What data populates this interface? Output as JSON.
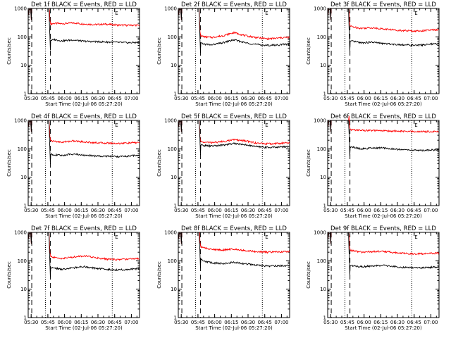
{
  "figure": {
    "colors": {
      "events": "#000000",
      "lld": "#ff0000",
      "axes": "#000000",
      "background": "#ffffff"
    },
    "line_styles": {
      "saa_markers": "dashed",
      "flare_markers": "dotted"
    }
  },
  "chart_data": [
    {
      "type": "line",
      "title": "Det 1f BLACK = Events, RED = LLD",
      "xlabel": "Start Time (02-Jul-06 05:27:20)",
      "ylabel": "Counts/sec",
      "x_ticks": [
        "05:30",
        "05:45",
        "06:00",
        "06:15",
        "06:30",
        "06:45",
        "07:00"
      ],
      "y_ticks": [
        "1",
        "10",
        "100",
        "1000"
      ],
      "yscale": "log",
      "xlim_minutes": [
        0,
        100
      ],
      "ylim": [
        1,
        1000
      ],
      "markers": [
        {
          "type": "dashed",
          "x_min": 3.2
        },
        {
          "type": "dotted",
          "x_min": 15.5
        },
        {
          "type": "dashed",
          "x_min": 20.0
        },
        {
          "type": "dotted",
          "x_min": 75.5
        },
        {
          "type": "label",
          "text": "E",
          "x_min": 78.0
        }
      ],
      "series": [
        {
          "name": "LLD",
          "color": "#ff0000",
          "x_min": [
            19.5,
            24,
            30,
            40,
            50,
            60,
            70,
            80,
            90,
            95
          ],
          "y": [
            280,
            300,
            290,
            310,
            285,
            270,
            280,
            260,
            255,
            258
          ]
        },
        {
          "name": "Events",
          "color": "#000000",
          "x_min": [
            19.5,
            24,
            30,
            40,
            50,
            60,
            70,
            80,
            90,
            95
          ],
          "y": [
            75,
            80,
            72,
            78,
            70,
            68,
            66,
            64,
            62,
            63
          ]
        }
      ]
    },
    {
      "type": "line",
      "title": "Det 2f BLACK = Events, RED = LLD",
      "xlabel": "Start Time (02-Jul-06 05:27:20)",
      "ylabel": "Counts/sec",
      "x_ticks": [
        "05:30",
        "05:45",
        "06:00",
        "06:15",
        "06:30",
        "06:45",
        "07:00"
      ],
      "y_ticks": [
        "1",
        "10",
        "100",
        "1000"
      ],
      "yscale": "log",
      "xlim_minutes": [
        0,
        100
      ],
      "ylim": [
        1,
        1000
      ],
      "markers": [
        {
          "type": "dashed",
          "x_min": 3.2
        },
        {
          "type": "dotted",
          "x_min": 15.5
        },
        {
          "type": "dashed",
          "x_min": 20.0
        },
        {
          "type": "dotted",
          "x_min": 75.5
        },
        {
          "type": "label",
          "text": "E",
          "x_min": 78.0
        }
      ],
      "series": [
        {
          "name": "LLD",
          "color": "#ff0000",
          "x_min": [
            19.5,
            24,
            30,
            40,
            50,
            60,
            70,
            80,
            90,
            95
          ],
          "y": [
            110,
            100,
            95,
            110,
            140,
            110,
            95,
            85,
            90,
            95
          ]
        },
        {
          "name": "Events",
          "color": "#000000",
          "x_min": [
            19.5,
            24,
            30,
            40,
            50,
            60,
            70,
            80,
            90,
            95
          ],
          "y": [
            60,
            55,
            52,
            62,
            78,
            62,
            54,
            50,
            52,
            55
          ]
        }
      ]
    },
    {
      "type": "line",
      "title": "Det 3f BLACK = Events, RED = LLD",
      "xlabel": "Start Time (02-Jul-06 05:27:20)",
      "ylabel": "Counts/sec",
      "x_ticks": [
        "05:30",
        "05:45",
        "06:00",
        "06:15",
        "06:30",
        "06:45",
        "07:00"
      ],
      "y_ticks": [
        "1",
        "10",
        "100",
        "1000"
      ],
      "yscale": "log",
      "xlim_minutes": [
        0,
        100
      ],
      "ylim": [
        1,
        1000
      ],
      "markers": [
        {
          "type": "dashed",
          "x_min": 3.2
        },
        {
          "type": "dotted",
          "x_min": 15.5
        },
        {
          "type": "dashed",
          "x_min": 20.0
        },
        {
          "type": "dotted",
          "x_min": 75.5
        },
        {
          "type": "label",
          "text": "E",
          "x_min": 78.0
        }
      ],
      "series": [
        {
          "name": "LLD",
          "color": "#ff0000",
          "x_min": [
            19.5,
            24,
            30,
            40,
            50,
            60,
            70,
            80,
            90,
            95
          ],
          "y": [
            240,
            220,
            200,
            210,
            190,
            175,
            165,
            160,
            170,
            175
          ]
        },
        {
          "name": "Events",
          "color": "#000000",
          "x_min": [
            19.5,
            24,
            30,
            40,
            50,
            60,
            70,
            80,
            90,
            95
          ],
          "y": [
            70,
            68,
            62,
            65,
            58,
            55,
            52,
            50,
            54,
            56
          ]
        }
      ]
    },
    {
      "type": "line",
      "title": "Det 4f BLACK = Events, RED = LLD",
      "xlabel": "Start Time (02-Jul-06 05:27:20)",
      "ylabel": "Counts/sec",
      "x_ticks": [
        "05:30",
        "05:45",
        "06:00",
        "06:15",
        "06:30",
        "06:45",
        "07:00"
      ],
      "y_ticks": [
        "1",
        "10",
        "100",
        "1000"
      ],
      "yscale": "log",
      "xlim_minutes": [
        0,
        100
      ],
      "ylim": [
        1,
        1000
      ],
      "markers": [
        {
          "type": "dashed",
          "x_min": 3.2
        },
        {
          "type": "dotted",
          "x_min": 15.5
        },
        {
          "type": "dashed",
          "x_min": 20.0
        },
        {
          "type": "dotted",
          "x_min": 75.5
        },
        {
          "type": "label",
          "text": "E",
          "x_min": 78.0
        }
      ],
      "series": [
        {
          "name": "LLD",
          "color": "#ff0000",
          "x_min": [
            19.5,
            24,
            30,
            40,
            50,
            60,
            70,
            80,
            90,
            95
          ],
          "y": [
            190,
            185,
            170,
            190,
            175,
            165,
            160,
            155,
            160,
            165
          ]
        },
        {
          "name": "Events",
          "color": "#000000",
          "x_min": [
            19.5,
            24,
            30,
            40,
            50,
            60,
            70,
            80,
            90,
            95
          ],
          "y": [
            65,
            62,
            58,
            66,
            60,
            56,
            55,
            53,
            55,
            58
          ]
        }
      ]
    },
    {
      "type": "line",
      "title": "Det 5f BLACK = Events, RED = LLD",
      "xlabel": "Start Time (02-Jul-06 05:27:20)",
      "ylabel": "Counts/sec",
      "x_ticks": [
        "05:30",
        "05:45",
        "06:00",
        "06:15",
        "06:30",
        "06:45",
        "07:00"
      ],
      "y_ticks": [
        "1",
        "10",
        "100",
        "1000"
      ],
      "yscale": "log",
      "xlim_minutes": [
        0,
        100
      ],
      "ylim": [
        1,
        1000
      ],
      "markers": [
        {
          "type": "dashed",
          "x_min": 3.2
        },
        {
          "type": "dotted",
          "x_min": 15.5
        },
        {
          "type": "dashed",
          "x_min": 20.0
        },
        {
          "type": "dotted",
          "x_min": 75.5
        },
        {
          "type": "label",
          "text": "E",
          "x_min": 78.0
        }
      ],
      "series": [
        {
          "name": "LLD",
          "color": "#ff0000",
          "x_min": [
            19.5,
            24,
            30,
            40,
            50,
            60,
            70,
            80,
            90,
            95
          ],
          "y": [
            175,
            170,
            165,
            180,
            210,
            190,
            160,
            150,
            155,
            160
          ]
        },
        {
          "name": "Events",
          "color": "#000000",
          "x_min": [
            19.5,
            24,
            30,
            40,
            50,
            60,
            70,
            80,
            90,
            95
          ],
          "y": [
            135,
            130,
            125,
            135,
            155,
            140,
            120,
            112,
            115,
            120
          ]
        }
      ]
    },
    {
      "type": "line",
      "title": "Det 6f BLACK = Events, RED = LLD",
      "xlabel": "Start Time (02-Jul-06 05:27:20)",
      "ylabel": "Counts/sec",
      "x_ticks": [
        "05:30",
        "05:45",
        "06:00",
        "06:15",
        "06:30",
        "06:45",
        "07:00"
      ],
      "y_ticks": [
        "1",
        "10",
        "100",
        "1000"
      ],
      "yscale": "log",
      "xlim_minutes": [
        0,
        100
      ],
      "ylim": [
        1,
        1000
      ],
      "markers": [
        {
          "type": "dashed",
          "x_min": 3.2
        },
        {
          "type": "dotted",
          "x_min": 15.5
        },
        {
          "type": "dashed",
          "x_min": 20.0
        },
        {
          "type": "dotted",
          "x_min": 75.5
        },
        {
          "type": "label",
          "text": "E",
          "x_min": 78.0
        }
      ],
      "series": [
        {
          "name": "LLD",
          "color": "#ff0000",
          "x_min": [
            19.5,
            24,
            30,
            40,
            50,
            60,
            70,
            80,
            90,
            95
          ],
          "y": [
            480,
            460,
            450,
            440,
            430,
            420,
            410,
            400,
            405,
            410
          ]
        },
        {
          "name": "Events",
          "color": "#000000",
          "x_min": [
            19.5,
            24,
            30,
            40,
            50,
            60,
            70,
            80,
            90,
            95
          ],
          "y": [
            120,
            110,
            100,
            105,
            108,
            98,
            92,
            88,
            90,
            92
          ]
        }
      ]
    },
    {
      "type": "line",
      "title": "Det 7f BLACK = Events, RED = LLD",
      "xlabel": "Start Time (02-Jul-06 05:27:20)",
      "ylabel": "Counts/sec",
      "x_ticks": [
        "05:30",
        "05:45",
        "06:00",
        "06:15",
        "06:30",
        "06:45",
        "07:00"
      ],
      "y_ticks": [
        "1",
        "10",
        "100",
        "1000"
      ],
      "yscale": "log",
      "xlim_minutes": [
        0,
        100
      ],
      "ylim": [
        1,
        1000
      ],
      "markers": [
        {
          "type": "dashed",
          "x_min": 3.2
        },
        {
          "type": "dotted",
          "x_min": 15.5
        },
        {
          "type": "dashed",
          "x_min": 20.0
        },
        {
          "type": "dotted",
          "x_min": 75.5
        },
        {
          "type": "label",
          "text": "E",
          "x_min": 78.0
        }
      ],
      "series": [
        {
          "name": "LLD",
          "color": "#ff0000",
          "x_min": [
            19.5,
            24,
            30,
            40,
            50,
            60,
            70,
            80,
            90,
            95
          ],
          "y": [
            140,
            130,
            120,
            135,
            150,
            130,
            115,
            110,
            115,
            120
          ]
        },
        {
          "name": "Events",
          "color": "#000000",
          "x_min": [
            19.5,
            24,
            30,
            40,
            50,
            60,
            70,
            80,
            90,
            95
          ],
          "y": [
            58,
            55,
            50,
            56,
            62,
            55,
            50,
            48,
            50,
            52
          ]
        }
      ]
    },
    {
      "type": "line",
      "title": "Det 8f BLACK = Events, RED = LLD",
      "xlabel": "Start Time (02-Jul-06 05:27:20)",
      "ylabel": "Counts/sec",
      "x_ticks": [
        "05:30",
        "05:45",
        "06:00",
        "06:15",
        "06:30",
        "06:45",
        "07:00"
      ],
      "y_ticks": [
        "1",
        "10",
        "100",
        "1000"
      ],
      "yscale": "log",
      "xlim_minutes": [
        0,
        100
      ],
      "ylim": [
        1,
        1000
      ],
      "markers": [
        {
          "type": "dashed",
          "x_min": 3.2
        },
        {
          "type": "dotted",
          "x_min": 15.5
        },
        {
          "type": "dashed",
          "x_min": 20.0
        },
        {
          "type": "dotted",
          "x_min": 75.5
        },
        {
          "type": "label",
          "text": "E",
          "x_min": 78.0
        }
      ],
      "series": [
        {
          "name": "LLD",
          "color": "#ff0000",
          "x_min": [
            19.5,
            24,
            30,
            40,
            50,
            60,
            70,
            80,
            90,
            95
          ],
          "y": [
            320,
            280,
            250,
            240,
            260,
            230,
            210,
            200,
            205,
            210
          ]
        },
        {
          "name": "Events",
          "color": "#000000",
          "x_min": [
            19.5,
            24,
            30,
            40,
            50,
            60,
            70,
            80,
            90,
            95
          ],
          "y": [
            120,
            95,
            85,
            80,
            88,
            78,
            70,
            65,
            66,
            68
          ]
        }
      ]
    },
    {
      "type": "line",
      "title": "Det 9f BLACK = Events, RED = LLD",
      "xlabel": "Start Time (02-Jul-06 05:27:20)",
      "ylabel": "Counts/sec",
      "x_ticks": [
        "05:30",
        "05:45",
        "06:00",
        "06:15",
        "06:30",
        "06:45",
        "07:00"
      ],
      "y_ticks": [
        "1",
        "10",
        "100",
        "1000"
      ],
      "yscale": "log",
      "xlim_minutes": [
        0,
        100
      ],
      "ylim": [
        1,
        1000
      ],
      "markers": [
        {
          "type": "dashed",
          "x_min": 3.2
        },
        {
          "type": "dotted",
          "x_min": 15.5
        },
        {
          "type": "dashed",
          "x_min": 20.0
        },
        {
          "type": "dotted",
          "x_min": 75.5
        },
        {
          "type": "label",
          "text": "E",
          "x_min": 78.0
        }
      ],
      "series": [
        {
          "name": "LLD",
          "color": "#ff0000",
          "x_min": [
            19.5,
            24,
            30,
            40,
            50,
            60,
            70,
            80,
            90,
            95
          ],
          "y": [
            240,
            220,
            200,
            210,
            215,
            195,
            180,
            175,
            180,
            185
          ]
        },
        {
          "name": "Events",
          "color": "#000000",
          "x_min": [
            19.5,
            24,
            30,
            40,
            50,
            60,
            70,
            80,
            90,
            95
          ],
          "y": [
            70,
            66,
            62,
            66,
            68,
            62,
            58,
            56,
            58,
            60
          ]
        }
      ]
    }
  ]
}
